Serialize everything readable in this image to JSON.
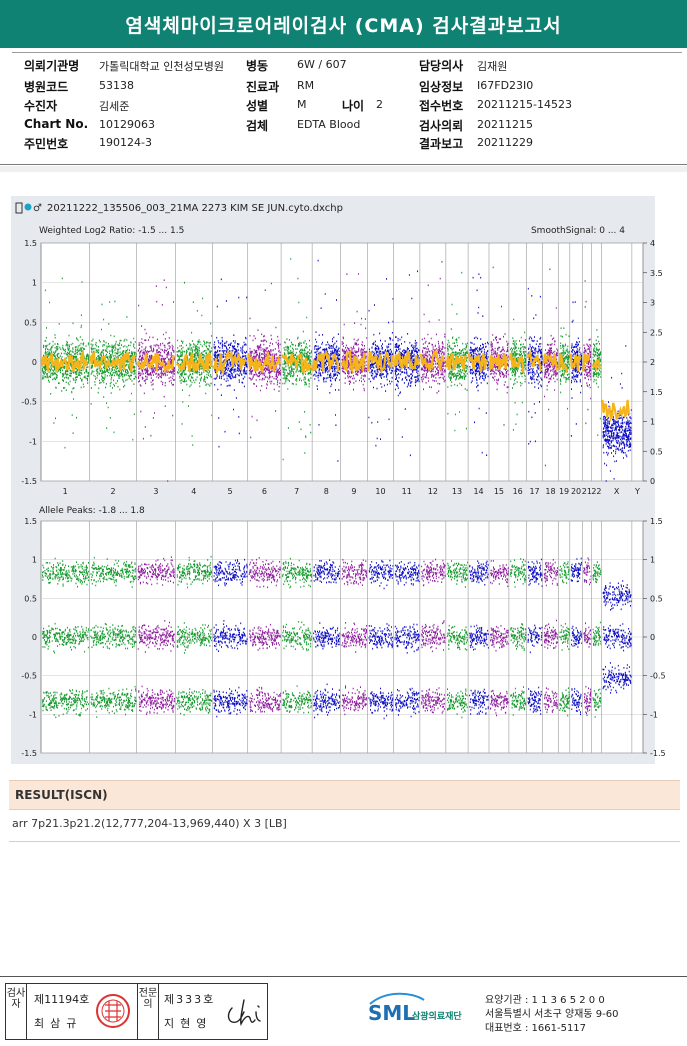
{
  "header": {
    "title": "염색체마이크로어레이검사 (CMA) 검사결과보고서"
  },
  "patient_info": {
    "col1": [
      {
        "label": "의뢰기관명",
        "value": "가톨릭대학교 인천성모병원"
      },
      {
        "label": "병원코드",
        "value": "53138"
      },
      {
        "label": "수진자",
        "value": "김세준"
      },
      {
        "label": "Chart No.",
        "value": "10129063"
      },
      {
        "label": "주민번호",
        "value": "190124-3"
      }
    ],
    "col2": [
      {
        "label": "병동",
        "value": "6W / 607"
      },
      {
        "label": "진료과",
        "value": "RM"
      },
      {
        "label": "성별",
        "value": "M"
      },
      {
        "label": "검체",
        "value": "EDTA Blood"
      }
    ],
    "age": {
      "label": "나이",
      "value": "2"
    },
    "col3": [
      {
        "label": "담당의사",
        "value": "김재원"
      },
      {
        "label": "임상정보",
        "value": "I67FD23I0"
      },
      {
        "label": "접수번호",
        "value": "20211215-14523"
      },
      {
        "label": "검사의뢰",
        "value": "20211215"
      },
      {
        "label": "결과보고",
        "value": "20211229"
      }
    ]
  },
  "plot": {
    "file_name": "20211222_135506_003_21MA 2273 KIM SE JUN.cyto.dxchp",
    "top_label": "Weighted Log2 Ratio: -1.5 ... 1.5",
    "top_right_label": "SmoothSignal: 0 ... 4",
    "bottom_label": "Allele Peaks: -1.8 ... 1.8",
    "top_left_ticks": [
      "1.5",
      "1",
      "0.5",
      "0",
      "-0.5",
      "-1",
      "-1.5"
    ],
    "top_right_ticks": [
      "4",
      "3.5",
      "3",
      "2.5",
      "2",
      "1.5",
      "1",
      "0.5",
      "0"
    ],
    "bottom_left_ticks": [
      "1.5",
      "1",
      "0.5",
      "0",
      "-0.5",
      "-1",
      "-1.5"
    ],
    "bottom_right_ticks": [
      "1.5",
      "1",
      "0.5",
      "0",
      "-0.5",
      "-1",
      "-1.5"
    ],
    "chromosomes": [
      "1",
      "2",
      "3",
      "4",
      "5",
      "6",
      "7",
      "8",
      "9",
      "10",
      "11",
      "12",
      "13",
      "14",
      "15",
      "16",
      "17",
      "18",
      "19",
      "20",
      "21",
      "22",
      "X",
      "Y"
    ],
    "colors": {
      "green": "#159a2e",
      "blue": "#0d0dc4",
      "purple": "#8e1d9e",
      "orange": "#f5b41b",
      "panel": "#e6e9ee"
    }
  },
  "result": {
    "header": "RESULT(ISCN)",
    "text": "arr 7p21.3p21.2(12,777,204-13,969,440) X 3 [LB]"
  },
  "signatures": {
    "inspector_label": "검사자",
    "inspector_number": "제11194호",
    "inspector_name": "최삼규",
    "verifier_label": "전문의",
    "verifier_number": "제333호",
    "verifier_name": "지현영"
  },
  "footer": {
    "logo_text": "SML",
    "logo_sub": "삼광의료재단",
    "institution_code": "요양기관 : 1 1 3 6 5 2 0 0",
    "address": "서울특별시 서초구 양재동 9-60",
    "phone": "대표번호 : 1661-5117"
  }
}
